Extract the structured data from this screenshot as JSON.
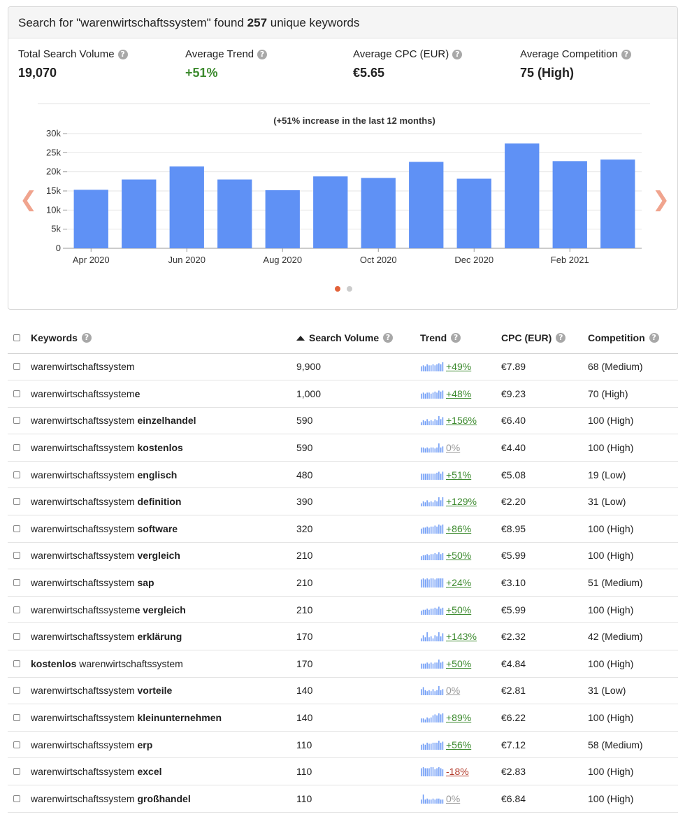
{
  "summary": {
    "prefix": "Search for \"warenwirtschaftssystem\" found",
    "count": "257",
    "suffix": "unique keywords"
  },
  "metrics": [
    {
      "label": "Total Search Volume",
      "value": "19,070"
    },
    {
      "label": "Average Trend",
      "value": "+51%"
    },
    {
      "label": "Average CPC (EUR)",
      "value": "€5.65"
    },
    {
      "label": "Average Competition",
      "value": "75 (High)"
    }
  ],
  "help_icon": "question-mark-icon",
  "chart_data": {
    "type": "bar",
    "title": "(+51% increase in the last 12 months)",
    "categories": [
      "Apr 2020",
      "May 2020",
      "Jun 2020",
      "Jul 2020",
      "Aug 2020",
      "Sep 2020",
      "Oct 2020",
      "Nov 2020",
      "Dec 2020",
      "Jan 2021",
      "Feb 2021",
      "Mar 2021"
    ],
    "tick_labels": [
      "Apr 2020",
      "Jun 2020",
      "Aug 2020",
      "Oct 2020",
      "Dec 2020",
      "Feb 2021"
    ],
    "values": [
      15300,
      18000,
      21400,
      18000,
      15200,
      18800,
      18400,
      22600,
      18200,
      27400,
      22800,
      23200
    ],
    "ylim": [
      0,
      30000
    ],
    "yticks": [
      "0",
      "5k",
      "10k",
      "15k",
      "20k",
      "25k",
      "30k"
    ],
    "bar_color": "#5f91f5",
    "grid": true
  },
  "table": {
    "headers": {
      "keywords": "Keywords",
      "volume": "Search Volume",
      "trend": "Trend",
      "cpc": "CPC (EUR)",
      "competition": "Competition"
    },
    "rows": [
      {
        "base": "warenwirtschaftssystem",
        "bold": "",
        "volume": "9,900",
        "trend": "+49%",
        "trend_type": "pos",
        "cpc": "€7.89",
        "competition": "68 (Medium)",
        "spark": [
          5,
          6,
          5,
          7,
          6,
          6,
          7,
          6,
          7,
          8,
          7,
          9
        ]
      },
      {
        "base": "warenwirtschaftssystem",
        "bold": "e",
        "volume": "1,000",
        "trend": "+48%",
        "trend_type": "pos",
        "cpc": "€9.23",
        "competition": "70 (High)",
        "spark": [
          5,
          6,
          5,
          6,
          6,
          5,
          6,
          7,
          6,
          8,
          7,
          8
        ]
      },
      {
        "base": "warenwirtschaftssystem ",
        "bold": "einzelhandel",
        "volume": "590",
        "trend": "+156%",
        "trend_type": "pos",
        "cpc": "€6.40",
        "competition": "100 (High)",
        "spark": [
          3,
          5,
          4,
          6,
          4,
          5,
          4,
          6,
          5,
          9,
          6,
          8
        ]
      },
      {
        "base": "warenwirtschaftssystem ",
        "bold": "kostenlos",
        "volume": "590",
        "trend": "0%",
        "trend_type": "zero",
        "cpc": "€4.40",
        "competition": "100 (High)",
        "spark": [
          5,
          5,
          4,
          5,
          4,
          5,
          5,
          4,
          5,
          9,
          5,
          6
        ]
      },
      {
        "base": "warenwirtschaftssystem ",
        "bold": "englisch",
        "volume": "480",
        "trend": "+51%",
        "trend_type": "pos",
        "cpc": "€5.08",
        "competition": "19 (Low)",
        "spark": [
          6,
          6,
          6,
          6,
          6,
          6,
          6,
          6,
          7,
          8,
          6,
          8
        ]
      },
      {
        "base": "warenwirtschaftssystem ",
        "bold": "definition",
        "volume": "390",
        "trend": "+129%",
        "trend_type": "pos",
        "cpc": "€2.20",
        "competition": "31 (Low)",
        "spark": [
          3,
          5,
          4,
          6,
          4,
          5,
          4,
          6,
          5,
          9,
          6,
          9
        ]
      },
      {
        "base": "warenwirtschaftssystem ",
        "bold": "software",
        "volume": "320",
        "trend": "+86%",
        "trend_type": "pos",
        "cpc": "€8.95",
        "competition": "100 (High)",
        "spark": [
          5,
          6,
          6,
          7,
          6,
          7,
          7,
          8,
          7,
          9,
          8,
          9
        ]
      },
      {
        "base": "warenwirtschaftssystem ",
        "bold": "vergleich",
        "volume": "210",
        "trend": "+50%",
        "trend_type": "pos",
        "cpc": "€5.99",
        "competition": "100 (High)",
        "spark": [
          4,
          5,
          5,
          6,
          5,
          6,
          6,
          7,
          6,
          8,
          6,
          7
        ]
      },
      {
        "base": "warenwirtschaftssystem ",
        "bold": "sap",
        "volume": "210",
        "trend": "+24%",
        "trend_type": "pos",
        "cpc": "€3.10",
        "competition": "51 (Medium)",
        "spark": [
          8,
          9,
          8,
          9,
          8,
          9,
          9,
          8,
          9,
          9,
          9,
          9
        ]
      },
      {
        "base": "warenwirtschaftssystem",
        "bold": "e vergleich",
        "volume": "210",
        "trend": "+50%",
        "trend_type": "pos",
        "cpc": "€5.99",
        "competition": "100 (High)",
        "spark": [
          4,
          5,
          5,
          6,
          5,
          6,
          6,
          7,
          6,
          8,
          6,
          7
        ]
      },
      {
        "base": "warenwirtschaftssystem ",
        "bold": "erklärung",
        "volume": "170",
        "trend": "+143%",
        "trend_type": "pos",
        "cpc": "€2.32",
        "competition": "42 (Medium)",
        "spark": [
          3,
          6,
          4,
          9,
          4,
          5,
          3,
          6,
          5,
          9,
          5,
          8
        ]
      },
      {
        "base": "",
        "bold": "kostenlos",
        "after": " warenwirtschaftssystem",
        "volume": "170",
        "trend": "+50%",
        "trend_type": "pos",
        "cpc": "€4.84",
        "competition": "100 (High)",
        "spark": [
          5,
          5,
          5,
          6,
          5,
          6,
          5,
          6,
          6,
          9,
          6,
          7
        ]
      },
      {
        "base": "warenwirtschaftssystem ",
        "bold": "vorteile",
        "volume": "140",
        "trend": "0%",
        "trend_type": "zero",
        "cpc": "€2.81",
        "competition": "31 (Low)",
        "spark": [
          6,
          8,
          5,
          4,
          5,
          4,
          6,
          4,
          5,
          9,
          5,
          6
        ]
      },
      {
        "base": "warenwirtschaftssystem ",
        "bold": "kleinunternehmen",
        "volume": "140",
        "trend": "+89%",
        "trend_type": "pos",
        "cpc": "€6.22",
        "competition": "100 (High)",
        "spark": [
          4,
          4,
          3,
          5,
          4,
          5,
          7,
          8,
          7,
          9,
          8,
          9
        ]
      },
      {
        "base": "warenwirtschaftssystem ",
        "bold": "erp",
        "volume": "110",
        "trend": "+56%",
        "trend_type": "pos",
        "cpc": "€7.12",
        "competition": "58 (Medium)",
        "spark": [
          5,
          6,
          5,
          7,
          6,
          6,
          7,
          7,
          7,
          9,
          7,
          8
        ]
      },
      {
        "base": "warenwirtschaftssystem ",
        "bold": "excel",
        "volume": "110",
        "trend": "-18%",
        "trend_type": "neg",
        "cpc": "€2.83",
        "competition": "100 (High)",
        "spark": [
          8,
          9,
          8,
          8,
          8,
          9,
          9,
          7,
          8,
          9,
          8,
          7
        ]
      },
      {
        "base": "warenwirtschaftssystem ",
        "bold": "großhandel",
        "volume": "110",
        "trend": "0%",
        "trend_type": "zero",
        "cpc": "€6.84",
        "competition": "100 (High)",
        "spark": [
          4,
          9,
          4,
          5,
          4,
          4,
          5,
          4,
          5,
          5,
          4,
          4
        ]
      }
    ]
  }
}
